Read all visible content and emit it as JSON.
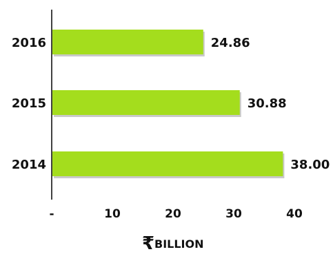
{
  "chart_data": {
    "type": "bar",
    "orientation": "horizontal",
    "categories": [
      "2016",
      "2015",
      "2014"
    ],
    "values": [
      24.86,
      30.88,
      38.0
    ],
    "value_labels": [
      "24.86",
      "30.88",
      "38.00"
    ],
    "xlim": [
      0,
      40
    ],
    "xticks": [
      {
        "value": 0,
        "label": "-"
      },
      {
        "value": 10,
        "label": "10"
      },
      {
        "value": 20,
        "label": "20"
      },
      {
        "value": 30,
        "label": "30"
      },
      {
        "value": 40,
        "label": "40"
      }
    ],
    "xlabel_symbol": "₹",
    "xlabel": "BILLION",
    "title": "",
    "grid": false,
    "bar_color": "#a4dd1d",
    "bar_shadow_color": "#c9c9c9",
    "axis_color": "#000000"
  }
}
